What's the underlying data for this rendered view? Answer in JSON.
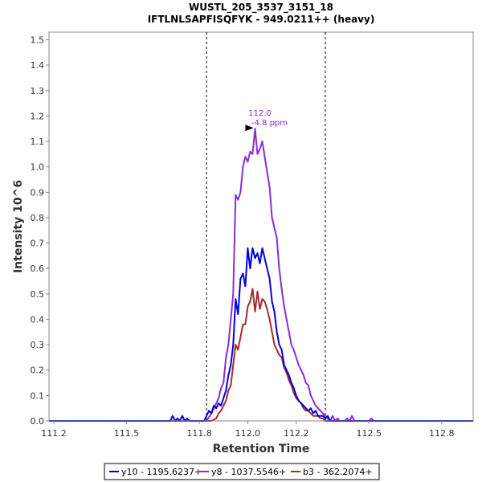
{
  "chart_data": {
    "type": "line",
    "title": "WUSTL_205_3537_3151_18",
    "subtitle": "IFTLNLSAPFISQFYK - 949.0211++ (heavy)",
    "xlabel": "Retention Time",
    "ylabel": "Intensity 10^6",
    "xlim": [
      111.18,
      112.93
    ],
    "ylim": [
      0,
      1.53
    ],
    "x_ticks": [
      "111.2",
      "111.5",
      "111.8",
      "112.0",
      "112.2",
      "112.5",
      "112.8"
    ],
    "y_ticks": [
      "0.0",
      "0.1",
      "0.2",
      "0.3",
      "0.4",
      "0.5",
      "0.6",
      "0.7",
      "0.8",
      "0.9",
      "1.0",
      "1.1",
      "1.2",
      "1.3",
      "1.4",
      "1.5"
    ],
    "x_tick_values": [
      111.2,
      111.5,
      111.8,
      112.0,
      112.2,
      112.5,
      112.8
    ],
    "y_tick_values": [
      0.0,
      0.1,
      0.2,
      0.3,
      0.4,
      0.5,
      0.6,
      0.7,
      0.8,
      0.9,
      1.0,
      1.1,
      1.2,
      1.3,
      1.4,
      1.5
    ],
    "boundaries": [
      111.83,
      112.32
    ],
    "grid": false,
    "legend_position": "bottom",
    "annotation": {
      "x": 112.03,
      "y": 1.15,
      "line1": "112.0",
      "line2": "-4.8 ppm",
      "color": "#8B2BD6"
    },
    "series": [
      {
        "name": "y10 - 1195.6237+",
        "color": "#0000E0",
        "x": [
          111.18,
          111.68,
          111.69,
          111.7,
          111.71,
          111.72,
          111.73,
          111.74,
          111.75,
          111.76,
          111.77,
          111.8,
          111.82,
          111.84,
          111.85,
          111.86,
          111.87,
          111.88,
          111.89,
          111.9,
          111.91,
          111.92,
          111.93,
          111.94,
          111.95,
          111.96,
          111.97,
          111.98,
          111.99,
          112.0,
          112.01,
          112.02,
          112.03,
          112.04,
          112.05,
          112.06,
          112.07,
          112.08,
          112.09,
          112.1,
          112.11,
          112.12,
          112.13,
          112.14,
          112.15,
          112.16,
          112.17,
          112.18,
          112.19,
          112.2,
          112.21,
          112.22,
          112.23,
          112.24,
          112.25,
          112.26,
          112.27,
          112.28,
          112.29,
          112.3,
          112.31,
          112.32,
          112.33,
          112.34,
          112.35,
          112.93
        ],
        "y": [
          0.0,
          0.0,
          0.02,
          0.0,
          0.01,
          0.0,
          0.02,
          0.0,
          0.01,
          0.0,
          0.0,
          0.0,
          0.0,
          0.04,
          0.03,
          0.06,
          0.05,
          0.07,
          0.06,
          0.09,
          0.12,
          0.18,
          0.22,
          0.3,
          0.48,
          0.42,
          0.56,
          0.58,
          0.53,
          0.68,
          0.6,
          0.68,
          0.64,
          0.66,
          0.62,
          0.68,
          0.64,
          0.6,
          0.56,
          0.47,
          0.43,
          0.35,
          0.3,
          0.28,
          0.22,
          0.2,
          0.18,
          0.15,
          0.13,
          0.1,
          0.08,
          0.07,
          0.06,
          0.05,
          0.04,
          0.05,
          0.03,
          0.04,
          0.02,
          0.02,
          0.02,
          0.01,
          0.02,
          0.0,
          0.0,
          0.0
        ]
      },
      {
        "name": "y8 - 1037.5546+",
        "color": "#8B2BD6",
        "x": [
          111.18,
          111.83,
          111.85,
          111.86,
          111.87,
          111.88,
          111.89,
          111.9,
          111.91,
          111.92,
          111.93,
          111.94,
          111.95,
          111.96,
          111.97,
          111.98,
          111.99,
          112.0,
          112.01,
          112.02,
          112.03,
          112.04,
          112.05,
          112.06,
          112.07,
          112.08,
          112.09,
          112.1,
          112.11,
          112.12,
          112.13,
          112.14,
          112.15,
          112.16,
          112.17,
          112.18,
          112.19,
          112.2,
          112.21,
          112.22,
          112.23,
          112.24,
          112.25,
          112.26,
          112.27,
          112.28,
          112.29,
          112.3,
          112.31,
          112.32,
          112.33,
          112.34,
          112.35,
          112.36,
          112.37,
          112.38,
          112.39,
          112.4,
          112.41,
          112.42,
          112.43,
          112.44,
          112.5,
          112.51,
          112.52,
          112.93
        ],
        "y": [
          0.0,
          0.0,
          0.03,
          0.05,
          0.07,
          0.09,
          0.13,
          0.15,
          0.25,
          0.3,
          0.4,
          0.5,
          0.89,
          0.87,
          0.9,
          1.0,
          1.04,
          1.02,
          1.06,
          1.05,
          1.15,
          1.05,
          1.07,
          1.1,
          1.04,
          0.98,
          0.92,
          0.8,
          0.76,
          0.72,
          0.6,
          0.52,
          0.45,
          0.4,
          0.35,
          0.3,
          0.28,
          0.25,
          0.22,
          0.2,
          0.18,
          0.15,
          0.14,
          0.1,
          0.08,
          0.06,
          0.05,
          0.04,
          0.03,
          0.02,
          0.01,
          0.0,
          0.02,
          0.0,
          0.01,
          0.0,
          0.0,
          0.0,
          0.01,
          0.0,
          0.02,
          0.0,
          0.0,
          0.01,
          0.0,
          0.0
        ]
      },
      {
        "name": "b3 - 362.2074+",
        "color": "#A52A2A",
        "x": [
          111.18,
          111.85,
          111.87,
          111.88,
          111.89,
          111.9,
          111.91,
          111.92,
          111.93,
          111.94,
          111.95,
          111.96,
          111.97,
          111.98,
          111.99,
          112.0,
          112.01,
          112.02,
          112.03,
          112.04,
          112.05,
          112.06,
          112.07,
          112.08,
          112.09,
          112.1,
          112.11,
          112.12,
          112.13,
          112.14,
          112.15,
          112.16,
          112.17,
          112.18,
          112.19,
          112.2,
          112.21,
          112.22,
          112.23,
          112.24,
          112.25,
          112.26,
          112.27,
          112.28,
          112.29,
          112.3,
          112.31,
          112.32,
          112.93
        ],
        "y": [
          0.0,
          0.0,
          0.01,
          0.03,
          0.04,
          0.06,
          0.08,
          0.12,
          0.14,
          0.22,
          0.3,
          0.28,
          0.33,
          0.38,
          0.38,
          0.45,
          0.47,
          0.52,
          0.43,
          0.51,
          0.44,
          0.48,
          0.47,
          0.44,
          0.4,
          0.35,
          0.3,
          0.28,
          0.26,
          0.25,
          0.21,
          0.19,
          0.16,
          0.14,
          0.11,
          0.09,
          0.08,
          0.07,
          0.05,
          0.04,
          0.04,
          0.03,
          0.02,
          0.02,
          0.02,
          0.01,
          0.01,
          0.0,
          0.0
        ]
      }
    ]
  }
}
